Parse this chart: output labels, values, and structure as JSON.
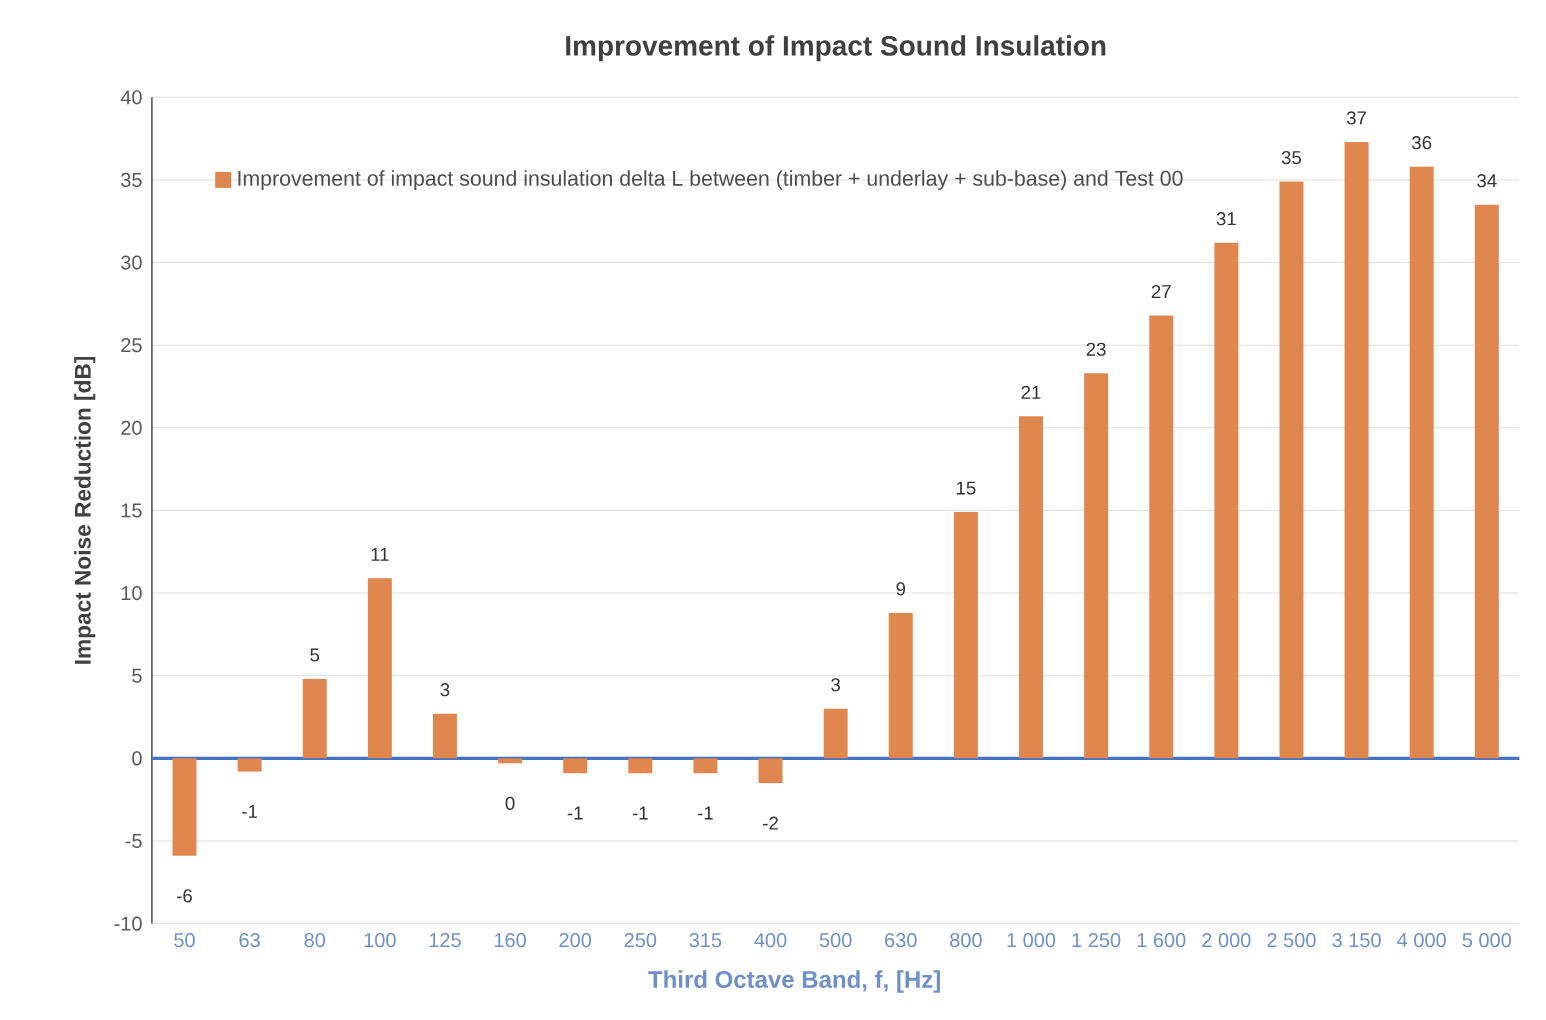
{
  "chart_data": {
    "type": "bar",
    "title": "Improvement of Impact Sound Insulation",
    "xlabel": "Third Octave Band, f, [Hz]",
    "ylabel": "Impact Noise Reduction [dB]",
    "categories": [
      "50",
      "63",
      "80",
      "100",
      "125",
      "160",
      "200",
      "250",
      "315",
      "400",
      "500",
      "630",
      "800",
      "1 000",
      "1 250",
      "1 600",
      "2 000",
      "2 500",
      "3 150",
      "4 000",
      "5 000"
    ],
    "series": [
      {
        "name": "Improvement of impact sound insulation delta L between (timber + underlay + sub-base) and Test 00",
        "color": "#e0874f",
        "values": [
          -5.9,
          -0.8,
          4.8,
          10.9,
          2.7,
          -0.3,
          -0.9,
          -0.9,
          -0.9,
          -1.5,
          3.0,
          8.8,
          14.9,
          20.7,
          23.3,
          26.8,
          31.2,
          34.9,
          37.3,
          35.8,
          33.5
        ],
        "value_labels": [
          "-6",
          "-1",
          "5",
          "11",
          "3",
          "0",
          "-1",
          "-1",
          "-1",
          "-2",
          "3",
          "9",
          "15",
          "21",
          "23",
          "27",
          "31",
          "35",
          "37",
          "36",
          "34"
        ]
      }
    ],
    "ylim": [
      -10,
      40
    ],
    "yticks": [
      -10,
      -5,
      0,
      5,
      10,
      15,
      20,
      25,
      30,
      35,
      40
    ],
    "grid": "y",
    "legend": "top left",
    "ref_lines": [
      {
        "axis": "y",
        "value": 0,
        "color": "#4472c4"
      }
    ]
  }
}
